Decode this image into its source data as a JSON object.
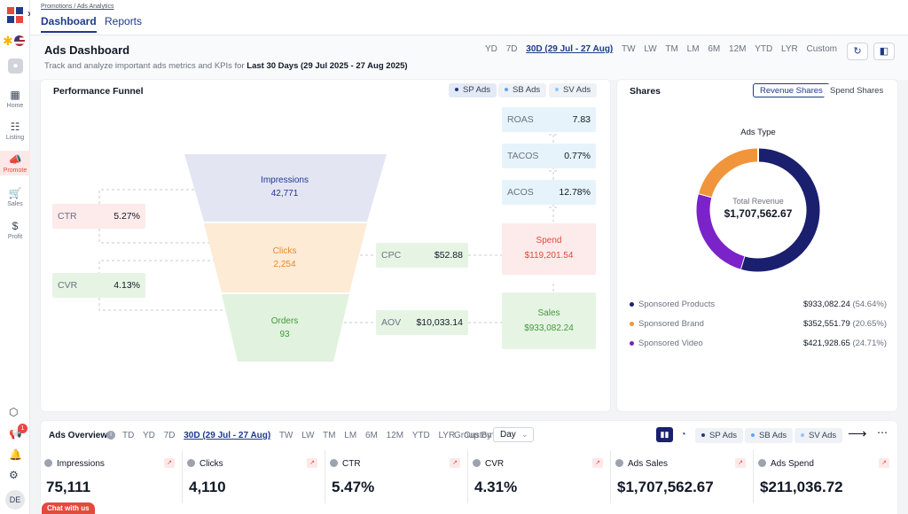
{
  "breadcrumb": "Promotions / Ads Analytics",
  "tabs": [
    {
      "label": "Dashboard"
    },
    {
      "label": "Reports"
    }
  ],
  "sidebar": {
    "items": [
      {
        "label": "Home",
        "icon": "grid-icon"
      },
      {
        "label": "Listing",
        "icon": "listing-icon"
      },
      {
        "label": "Promote",
        "icon": "megaphone-icon"
      },
      {
        "label": "Sales",
        "icon": "cart-icon"
      },
      {
        "label": "Profit",
        "icon": "dollar-icon"
      }
    ],
    "notification_count": "1",
    "avatar": "DE"
  },
  "header": {
    "title": "Ads Dashboard",
    "subtitle_prefix": "Track and analyze important ads metrics and KPIs for",
    "subtitle_range": "Last 30 Days (29 Jul 2025 - 27 Aug 2025)",
    "ranges": [
      "YD",
      "7D",
      "30D (29 Jul - 27 Aug)",
      "TW",
      "LW",
      "TM",
      "LM",
      "6M",
      "12M",
      "YTD",
      "LYR",
      "Custom"
    ],
    "selected_range": "30D (29 Jul - 27 Aug)"
  },
  "funnel": {
    "title": "Performance Funnel",
    "ad_types": [
      "SP Ads",
      "SB Ads",
      "SV Ads"
    ],
    "stages": [
      {
        "label": "Impressions",
        "value": "42,771"
      },
      {
        "label": "Clicks",
        "value": "2,254"
      },
      {
        "label": "Orders",
        "value": "93"
      }
    ],
    "left_metrics": [
      {
        "label": "CTR",
        "value": "5.27%"
      },
      {
        "label": "CVR",
        "value": "4.13%"
      }
    ],
    "mid_metrics": [
      {
        "label": "CPC",
        "value": "$52.88"
      },
      {
        "label": "AOV",
        "value": "$10,033.14"
      }
    ],
    "right_metrics": [
      {
        "label": "ROAS",
        "value": "7.83"
      },
      {
        "label": "TACOS",
        "value": "0.77%"
      },
      {
        "label": "ACOS",
        "value": "12.78%"
      }
    ],
    "spend": {
      "label": "Spend",
      "value": "$119,201.54"
    },
    "sales": {
      "label": "Sales",
      "value": "$933,082.24"
    }
  },
  "shares": {
    "title": "Shares",
    "toggle": [
      "Revenue Shares",
      "Spend Shares"
    ],
    "chart_title": "Ads Type",
    "center_label": "Total Revenue",
    "center_value": "$1,707,562.67",
    "segments": [
      {
        "name": "Sponsored Products",
        "value": "$933,082.24",
        "pct": "(54.64%)",
        "share": 54.64,
        "color": "#1a1f6e"
      },
      {
        "name": "Sponsored Brand",
        "value": "$352,551.79",
        "pct": "(20.65%)",
        "share": 20.65,
        "color": "#f0953b"
      },
      {
        "name": "Sponsored Video",
        "value": "$421,928.65",
        "pct": "(24.71%)",
        "share": 24.71,
        "color": "#7b22c9"
      }
    ]
  },
  "overview": {
    "title": "Ads Overview",
    "ranges": [
      "TD",
      "YD",
      "7D",
      "30D (29 Jul - 27 Aug)",
      "TW",
      "LW",
      "TM",
      "LM",
      "6M",
      "12M",
      "YTD",
      "LYR",
      "Custom"
    ],
    "selected_range": "30D (29 Jul - 27 Aug)",
    "group_by_label": "Group By",
    "group_by_value": "Day",
    "ad_types": [
      "SP Ads",
      "SB Ads",
      "SV Ads"
    ],
    "kpis": [
      {
        "label": "Impressions",
        "value": "75,111"
      },
      {
        "label": "Clicks",
        "value": "4,110"
      },
      {
        "label": "CTR",
        "value": "5.47%"
      },
      {
        "label": "CVR",
        "value": "4.31%"
      },
      {
        "label": "Ads Sales",
        "value": "$1,707,562.67"
      },
      {
        "label": "Ads Spend",
        "value": "$211,036.72"
      }
    ]
  },
  "chat_label": "Chat with us"
}
